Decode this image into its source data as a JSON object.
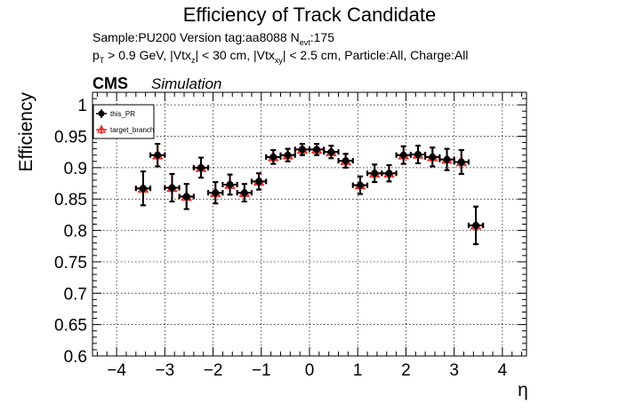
{
  "title": "Efficiency of Track Candidate",
  "info": {
    "sample_prefix": "Sample:PU200   Version tag:aa8088  N",
    "nevt_sub": "evt",
    "nevt_value": ":175",
    "pt": "p",
    "pt_sub": "T",
    "cuts_1": " > 0.9 GeV, |Vtx",
    "vtxz_sub": "z",
    "cuts_2": "| < 30 cm, |Vtx",
    "vtxxy_sub": "xy",
    "cuts_3": "| < 2.5 cm, Particle:All, Charge:All"
  },
  "cms_label": "CMS",
  "simulation_label": "Simulation",
  "chart_data": {
    "type": "scatter",
    "title": "Efficiency of Track Candidate",
    "xlabel": "η",
    "ylabel": "Efficiency",
    "xlim": [
      -4.5,
      4.5
    ],
    "ylim": [
      0.6,
      1.02
    ],
    "xticks": [
      -4,
      -3,
      -2,
      -1,
      0,
      1,
      2,
      3,
      4
    ],
    "xtick_labels": [
      "−4",
      "−3",
      "−2",
      "−1",
      "0",
      "1",
      "2",
      "3",
      "4"
    ],
    "yticks": [
      0.6,
      0.65,
      0.7,
      0.75,
      0.8,
      0.85,
      0.9,
      0.95,
      1.0
    ],
    "ytick_labels": [
      "0.6",
      "0.65",
      "0.7",
      "0.75",
      "0.8",
      "0.85",
      "0.9",
      "0.95",
      "1"
    ],
    "grid": true,
    "legend_position": "top-left",
    "x": [
      -3.45,
      -3.15,
      -2.85,
      -2.55,
      -2.25,
      -1.95,
      -1.65,
      -1.35,
      -1.05,
      -0.75,
      -0.45,
      -0.15,
      0.15,
      0.45,
      0.75,
      1.05,
      1.35,
      1.65,
      1.95,
      2.25,
      2.55,
      2.85,
      3.15,
      3.45
    ],
    "x_err": 0.15,
    "series": [
      {
        "name": "this_PR",
        "color": "#000000",
        "marker": "filled-circle",
        "values": [
          0.867,
          0.92,
          0.868,
          0.854,
          0.9,
          0.86,
          0.873,
          0.86,
          0.878,
          0.917,
          0.92,
          0.929,
          0.929,
          0.925,
          0.911,
          0.872,
          0.891,
          0.891,
          0.92,
          0.921,
          0.917,
          0.913,
          0.909,
          0.808
        ],
        "errors": [
          0.027,
          0.018,
          0.022,
          0.02,
          0.016,
          0.017,
          0.016,
          0.014,
          0.013,
          0.011,
          0.01,
          0.009,
          0.009,
          0.01,
          0.011,
          0.014,
          0.014,
          0.013,
          0.014,
          0.014,
          0.015,
          0.017,
          0.019,
          0.03
        ]
      },
      {
        "name": "target_branch",
        "color": "#e8221c",
        "marker": "open-triangle",
        "values": [
          0.867,
          0.92,
          0.868,
          0.854,
          0.9,
          0.86,
          0.873,
          0.86,
          0.878,
          0.917,
          0.92,
          0.929,
          0.929,
          0.925,
          0.911,
          0.872,
          0.891,
          0.891,
          0.92,
          0.921,
          0.917,
          0.913,
          0.909,
          0.808
        ],
        "errors": [
          0.027,
          0.018,
          0.022,
          0.02,
          0.016,
          0.017,
          0.016,
          0.014,
          0.013,
          0.011,
          0.01,
          0.009,
          0.009,
          0.01,
          0.011,
          0.014,
          0.014,
          0.013,
          0.014,
          0.014,
          0.015,
          0.017,
          0.019,
          0.03
        ]
      }
    ]
  }
}
